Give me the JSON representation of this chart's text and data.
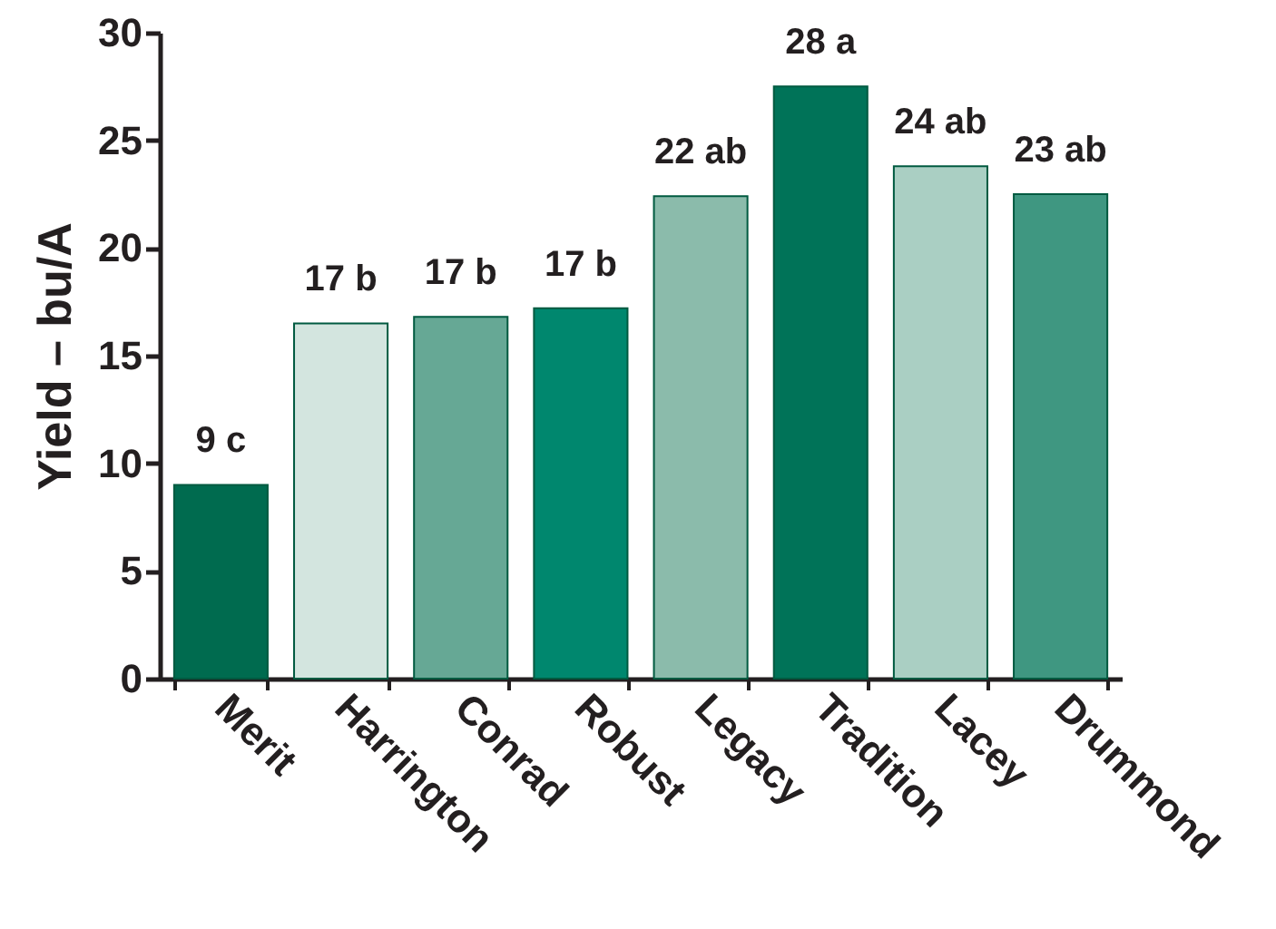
{
  "chart_data": {
    "type": "bar",
    "ylabel": "Yield – bu/A",
    "categories": [
      "Merit",
      "Harrington",
      "Conrad",
      "Robust",
      "Legacy",
      "Tradition",
      "Lacey",
      "Drummond"
    ],
    "values": [
      9.0,
      16.5,
      16.8,
      17.2,
      22.4,
      27.5,
      23.8,
      22.5
    ],
    "value_labels": [
      "9 c",
      "17 b",
      "17 b",
      "17 b",
      "22 ab",
      "28 a",
      "24 ab",
      "23 ab"
    ],
    "colors": [
      "#006b4f",
      "#d3e5df",
      "#66a895",
      "#00876e",
      "#8bbbab",
      "#007358",
      "#aacfc3",
      "#3f9781"
    ],
    "ylim": [
      0,
      30
    ],
    "yticks": [
      0,
      5,
      10,
      15,
      20,
      25,
      30
    ],
    "grid": false
  }
}
